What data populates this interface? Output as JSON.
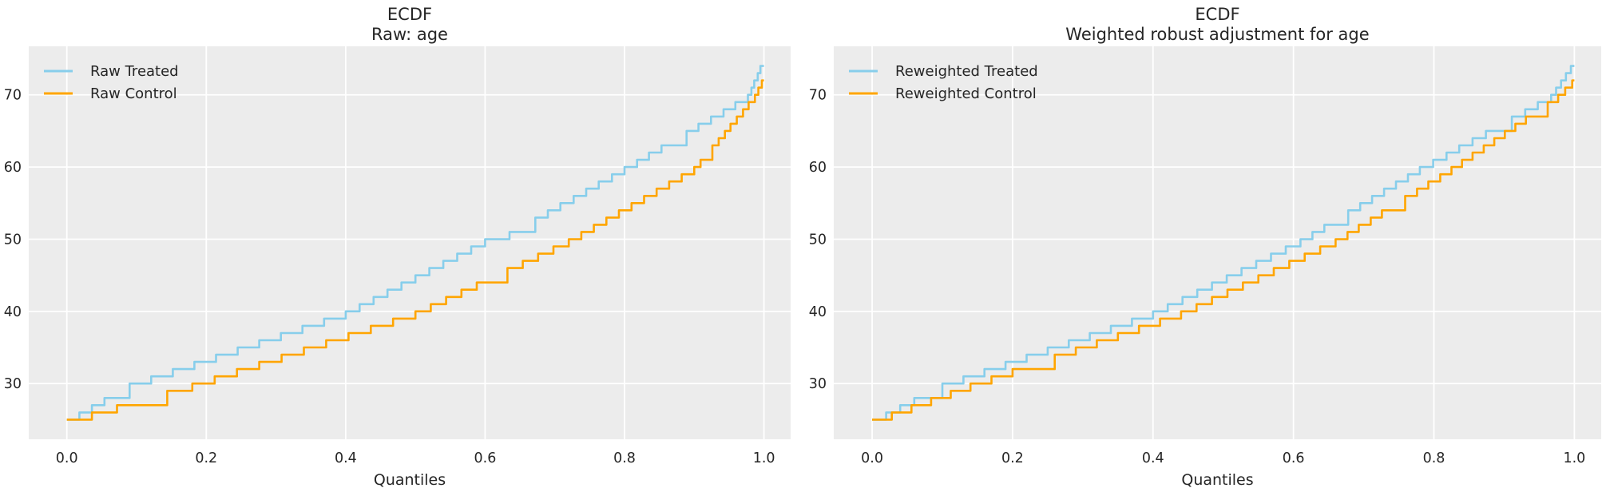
{
  "figure": {
    "background": "#ffffff",
    "axes_background": "#ececec",
    "grid_color": "#ffffff",
    "text_color": "#262626",
    "treated_color": "#87CEEB",
    "control_color": "#FFA500"
  },
  "chart_data": [
    {
      "type": "line",
      "subtype": "quantile-ecdf-step",
      "title": "ECDF",
      "subtitle": "Raw: age",
      "xlabel": "Quantiles",
      "ylabel": "",
      "xlim": [
        0,
        1
      ],
      "y_data_range": [
        25,
        74
      ],
      "x_tick_values": [
        0,
        0.2,
        0.4,
        0.6,
        0.8,
        1.0
      ],
      "x_tick_labels": [
        "0.0",
        "0.2",
        "0.4",
        "0.6",
        "0.8",
        "1.0"
      ],
      "y_ticks": [
        30,
        40,
        50,
        60,
        70
      ],
      "grid": true,
      "legend_position": "upper-left",
      "series": [
        {
          "name": "Raw Treated",
          "color": "#87CEEB",
          "points": [
            [
              0,
              25
            ],
            [
              0.018,
              26
            ],
            [
              0.036,
              27
            ],
            [
              0.054,
              28
            ],
            [
              0.09,
              30
            ],
            [
              0.121,
              31
            ],
            [
              0.152,
              32
            ],
            [
              0.183,
              33
            ],
            [
              0.214,
              34
            ],
            [
              0.245,
              35
            ],
            [
              0.276,
              36
            ],
            [
              0.307,
              37
            ],
            [
              0.338,
              38
            ],
            [
              0.369,
              39
            ],
            [
              0.4,
              40
            ],
            [
              0.42,
              41
            ],
            [
              0.44,
              42
            ],
            [
              0.46,
              43
            ],
            [
              0.48,
              44
            ],
            [
              0.5,
              45
            ],
            [
              0.52,
              46
            ],
            [
              0.54,
              47
            ],
            [
              0.56,
              48
            ],
            [
              0.58,
              49
            ],
            [
              0.6,
              50
            ],
            [
              0.635,
              51
            ],
            [
              0.672,
              53
            ],
            [
              0.69,
              54
            ],
            [
              0.708,
              55
            ],
            [
              0.727,
              56
            ],
            [
              0.745,
              57
            ],
            [
              0.763,
              58
            ],
            [
              0.782,
              59
            ],
            [
              0.8,
              60
            ],
            [
              0.818,
              61
            ],
            [
              0.835,
              62
            ],
            [
              0.853,
              63
            ],
            [
              0.889,
              65
            ],
            [
              0.906,
              66
            ],
            [
              0.924,
              67
            ],
            [
              0.942,
              68
            ],
            [
              0.959,
              69
            ],
            [
              0.977,
              70
            ],
            [
              0.982,
              71
            ],
            [
              0.986,
              72
            ],
            [
              0.991,
              73
            ],
            [
              0.995,
              74
            ]
          ]
        },
        {
          "name": "Raw Control",
          "color": "#FFA500",
          "points": [
            [
              0,
              25
            ],
            [
              0.036,
              26
            ],
            [
              0.072,
              27
            ],
            [
              0.144,
              29
            ],
            [
              0.18,
              30
            ],
            [
              0.212,
              31
            ],
            [
              0.244,
              32
            ],
            [
              0.276,
              33
            ],
            [
              0.308,
              34
            ],
            [
              0.34,
              35
            ],
            [
              0.372,
              36
            ],
            [
              0.404,
              37
            ],
            [
              0.436,
              38
            ],
            [
              0.468,
              39
            ],
            [
              0.5,
              40
            ],
            [
              0.522,
              41
            ],
            [
              0.544,
              42
            ],
            [
              0.566,
              43
            ],
            [
              0.588,
              44
            ],
            [
              0.632,
              46
            ],
            [
              0.654,
              47
            ],
            [
              0.676,
              48
            ],
            [
              0.698,
              49
            ],
            [
              0.72,
              50
            ],
            [
              0.738,
              51
            ],
            [
              0.756,
              52
            ],
            [
              0.774,
              53
            ],
            [
              0.792,
              54
            ],
            [
              0.81,
              55
            ],
            [
              0.828,
              56
            ],
            [
              0.846,
              57
            ],
            [
              0.864,
              58
            ],
            [
              0.882,
              59
            ],
            [
              0.9,
              60
            ],
            [
              0.909,
              61
            ],
            [
              0.926,
              63
            ],
            [
              0.935,
              64
            ],
            [
              0.944,
              65
            ],
            [
              0.952,
              66
            ],
            [
              0.961,
              67
            ],
            [
              0.97,
              68
            ],
            [
              0.978,
              69
            ],
            [
              0.987,
              70
            ],
            [
              0.992,
              71
            ],
            [
              0.997,
              72
            ]
          ]
        }
      ]
    },
    {
      "type": "line",
      "subtype": "quantile-ecdf-step",
      "title": "ECDF",
      "subtitle": "Weighted robust adjustment for age",
      "xlabel": "Quantiles",
      "ylabel": "",
      "xlim": [
        0,
        1
      ],
      "y_data_range": [
        25,
        74
      ],
      "x_tick_values": [
        0,
        0.2,
        0.4,
        0.6,
        0.8,
        1.0
      ],
      "x_tick_labels": [
        "0.0",
        "0.2",
        "0.4",
        "0.6",
        "0.8",
        "1.0"
      ],
      "y_ticks": [
        30,
        40,
        50,
        60,
        70
      ],
      "grid": true,
      "legend_position": "upper-left",
      "series": [
        {
          "name": "Reweighted Treated",
          "color": "#87CEEB",
          "points": [
            [
              0,
              25
            ],
            [
              0.02,
              26
            ],
            [
              0.04,
              27
            ],
            [
              0.06,
              28
            ],
            [
              0.1,
              30
            ],
            [
              0.13,
              31
            ],
            [
              0.16,
              32
            ],
            [
              0.19,
              33
            ],
            [
              0.22,
              34
            ],
            [
              0.25,
              35
            ],
            [
              0.28,
              36
            ],
            [
              0.31,
              37
            ],
            [
              0.34,
              38
            ],
            [
              0.37,
              39
            ],
            [
              0.4,
              40
            ],
            [
              0.421,
              41
            ],
            [
              0.442,
              42
            ],
            [
              0.463,
              43
            ],
            [
              0.484,
              44
            ],
            [
              0.505,
              45
            ],
            [
              0.526,
              46
            ],
            [
              0.547,
              47
            ],
            [
              0.568,
              48
            ],
            [
              0.589,
              49
            ],
            [
              0.61,
              50
            ],
            [
              0.627,
              51
            ],
            [
              0.644,
              52
            ],
            [
              0.678,
              54
            ],
            [
              0.695,
              55
            ],
            [
              0.712,
              56
            ],
            [
              0.729,
              57
            ],
            [
              0.746,
              58
            ],
            [
              0.763,
              59
            ],
            [
              0.78,
              60
            ],
            [
              0.799,
              61
            ],
            [
              0.818,
              62
            ],
            [
              0.836,
              63
            ],
            [
              0.855,
              64
            ],
            [
              0.874,
              65
            ],
            [
              0.911,
              67
            ],
            [
              0.93,
              68
            ],
            [
              0.948,
              69
            ],
            [
              0.967,
              70
            ],
            [
              0.974,
              71
            ],
            [
              0.981,
              72
            ],
            [
              0.988,
              73
            ],
            [
              0.995,
              74
            ]
          ]
        },
        {
          "name": "Reweighted Control",
          "color": "#FFA500",
          "points": [
            [
              0,
              25
            ],
            [
              0.028,
              26
            ],
            [
              0.056,
              27
            ],
            [
              0.084,
              28
            ],
            [
              0.112,
              29
            ],
            [
              0.14,
              30
            ],
            [
              0.17,
              31
            ],
            [
              0.2,
              32
            ],
            [
              0.26,
              34
            ],
            [
              0.29,
              35
            ],
            [
              0.32,
              36
            ],
            [
              0.35,
              37
            ],
            [
              0.38,
              38
            ],
            [
              0.41,
              39
            ],
            [
              0.44,
              40
            ],
            [
              0.462,
              41
            ],
            [
              0.484,
              42
            ],
            [
              0.506,
              43
            ],
            [
              0.528,
              44
            ],
            [
              0.55,
              45
            ],
            [
              0.572,
              46
            ],
            [
              0.594,
              47
            ],
            [
              0.616,
              48
            ],
            [
              0.638,
              49
            ],
            [
              0.66,
              50
            ],
            [
              0.677,
              51
            ],
            [
              0.693,
              52
            ],
            [
              0.71,
              53
            ],
            [
              0.726,
              54
            ],
            [
              0.759,
              56
            ],
            [
              0.776,
              57
            ],
            [
              0.792,
              58
            ],
            [
              0.809,
              59
            ],
            [
              0.825,
              60
            ],
            [
              0.84,
              61
            ],
            [
              0.855,
              62
            ],
            [
              0.871,
              63
            ],
            [
              0.886,
              64
            ],
            [
              0.901,
              65
            ],
            [
              0.916,
              66
            ],
            [
              0.931,
              67
            ],
            [
              0.962,
              69
            ],
            [
              0.977,
              70
            ],
            [
              0.987,
              71
            ],
            [
              0.997,
              72
            ]
          ]
        }
      ]
    }
  ]
}
